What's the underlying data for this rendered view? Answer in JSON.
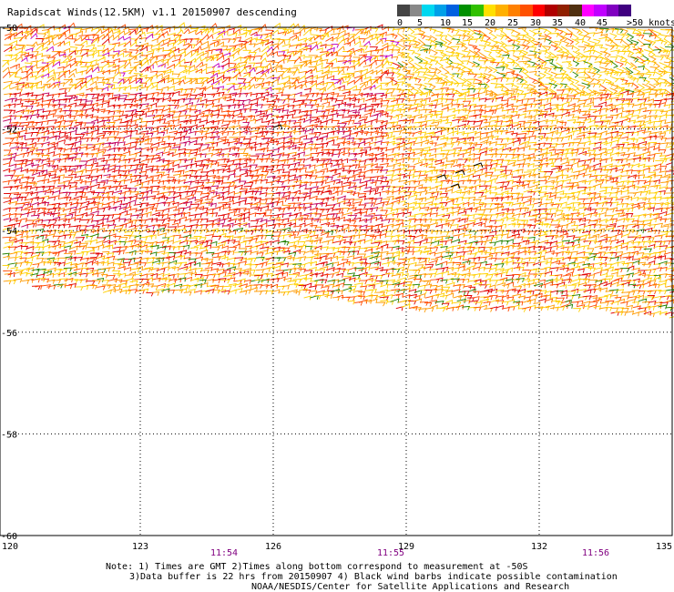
{
  "header": {
    "title": "Rapidscat Winds(12.5KM) v1.1 20150907 descending"
  },
  "legend": {
    "labels": [
      "0",
      "5",
      "10",
      "15",
      "20",
      "25",
      "30",
      "35",
      "40",
      "45",
      ">50 knots"
    ],
    "colors": [
      "#444444",
      "#888888",
      "#00d8f0",
      "#00a0e8",
      "#0060e0",
      "#009000",
      "#30c000",
      "#ffe000",
      "#ffb000",
      "#ff8000",
      "#ff5000",
      "#ff0000",
      "#b00000",
      "#902000",
      "#503010",
      "#ff00ff",
      "#c000ff",
      "#8000c0",
      "#400080"
    ]
  },
  "map": {
    "x_ticks": [
      "120",
      "123",
      "126",
      "129",
      "132",
      "135"
    ],
    "y_ticks": [
      "-50",
      "-52",
      "-54",
      "-56",
      "-58",
      "-60"
    ],
    "times": [
      "11:54",
      "11:55",
      "11:56"
    ],
    "swath_fill": "#ffffff",
    "barb_colors": {
      "light": "#ffd000",
      "medium": "#ff9a00",
      "strong": "#ff4a00",
      "gale": "#e00000",
      "storm": "#c00060",
      "violet": "#c000c0",
      "green": "#208000",
      "black": "#000000"
    }
  },
  "notes": {
    "line1": "Note: 1) Times are GMT 2)Times along bottom correspond to measurement at -50S",
    "line2": "3)Data buffer is 22 hrs from 20150907 4) Black wind barbs indicate possible contamination",
    "line3": "NOAA/NESDIS/Center for Satellite Applications and Research"
  }
}
